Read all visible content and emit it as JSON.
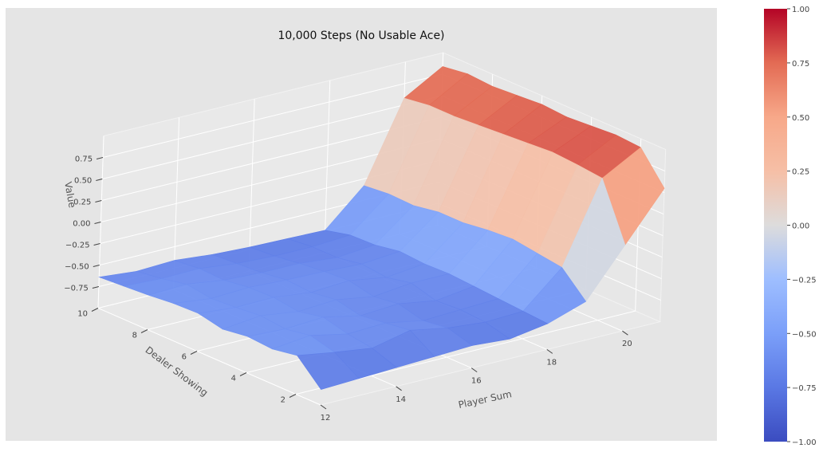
{
  "chart_data": {
    "type": "surface",
    "title": "10,000 Steps (No Usable Ace)",
    "xlabel": "Player Sum",
    "ylabel": "Dealer Showing",
    "zlabel": "Value",
    "x": [
      12,
      13,
      14,
      15,
      16,
      17,
      18,
      19,
      20,
      21
    ],
    "y": [
      1,
      2,
      3,
      4,
      5,
      6,
      7,
      8,
      9,
      10
    ],
    "x_ticks": [
      "12",
      "14",
      "16",
      "18",
      "20"
    ],
    "y_ticks": [
      "2",
      "4",
      "6",
      "8",
      "10"
    ],
    "z_ticks": [
      "−0.75",
      "−0.50",
      "−0.25",
      "0.00",
      "0.25",
      "0.50",
      "0.75"
    ],
    "z_range": [
      -1,
      1
    ],
    "colorbar_ticks": [
      "1.00",
      "0.75",
      "0.50",
      "0.25",
      "0.00",
      "−0.25",
      "−0.50",
      "−0.75",
      "−1.00"
    ],
    "colorbar_range": [
      -1,
      1
    ],
    "colormap": "coolwarm",
    "grid": true,
    "z": [
      [
        -0.82,
        -0.8,
        -0.78,
        -0.76,
        -0.74,
        -0.77,
        -0.7,
        -0.55,
        0.0,
        0.55
      ],
      [
        -0.55,
        -0.62,
        -0.68,
        -0.58,
        -0.66,
        -0.7,
        -0.68,
        -0.28,
        0.65,
        0.9
      ],
      [
        -0.6,
        -0.55,
        -0.64,
        -0.62,
        -0.7,
        -0.68,
        -0.66,
        -0.24,
        0.68,
        0.92
      ],
      [
        -0.58,
        -0.6,
        -0.57,
        -0.66,
        -0.63,
        -0.7,
        -0.64,
        -0.2,
        0.7,
        0.9
      ],
      [
        -0.62,
        -0.57,
        -0.63,
        -0.6,
        -0.67,
        -0.62,
        -0.62,
        -0.22,
        0.68,
        0.88
      ],
      [
        -0.56,
        -0.6,
        -0.59,
        -0.64,
        -0.61,
        -0.68,
        -0.63,
        -0.26,
        0.66,
        0.9
      ],
      [
        -0.57,
        -0.62,
        -0.6,
        -0.62,
        -0.63,
        -0.65,
        -0.61,
        -0.26,
        0.64,
        0.88
      ],
      [
        -0.6,
        -0.58,
        -0.64,
        -0.66,
        -0.66,
        -0.7,
        -0.66,
        -0.31,
        0.62,
        0.86
      ],
      [
        -0.62,
        -0.64,
        -0.63,
        -0.68,
        -0.7,
        -0.7,
        -0.67,
        -0.3,
        0.62,
        0.88
      ],
      [
        -0.64,
        -0.68,
        -0.66,
        -0.7,
        -0.72,
        -0.73,
        -0.74,
        -0.33,
        0.58,
        0.84
      ]
    ]
  }
}
